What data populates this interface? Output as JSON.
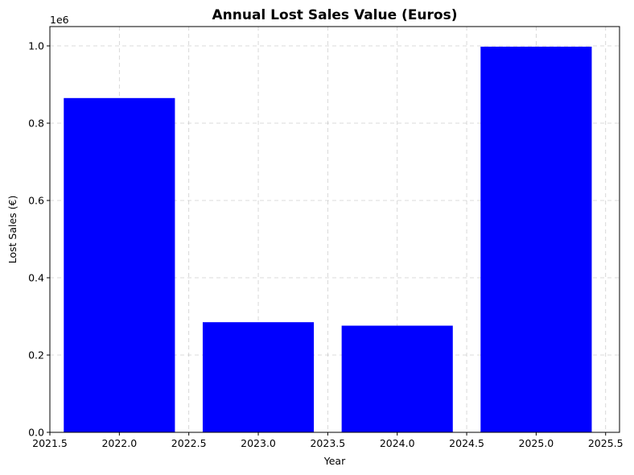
{
  "chart_data": {
    "type": "bar",
    "title": "Annual Lost Sales Value (Euros)",
    "xlabel": "Year",
    "ylabel": "Lost Sales (€)",
    "categories": [
      2022,
      2023,
      2024,
      2025
    ],
    "values": [
      865000,
      285000,
      276000,
      998000
    ],
    "bar_width": 0.8,
    "bar_color": "#0000ff",
    "xlim": [
      2021.5,
      2025.6
    ],
    "ylim": [
      0,
      1050000
    ],
    "xticks": [
      2021.5,
      2022.0,
      2022.5,
      2023.0,
      2023.5,
      2024.0,
      2024.5,
      2025.0,
      2025.5
    ],
    "xtick_labels": [
      "2021.5",
      "2022.0",
      "2022.5",
      "2023.0",
      "2023.5",
      "2024.0",
      "2024.5",
      "2025.0",
      "2025.5"
    ],
    "yticks": [
      0,
      200000,
      400000,
      600000,
      800000,
      1000000
    ],
    "ytick_labels": [
      "0.0",
      "0.2",
      "0.4",
      "0.6",
      "0.8",
      "1.0"
    ],
    "y_offset_label": "1e6",
    "grid": true
  }
}
